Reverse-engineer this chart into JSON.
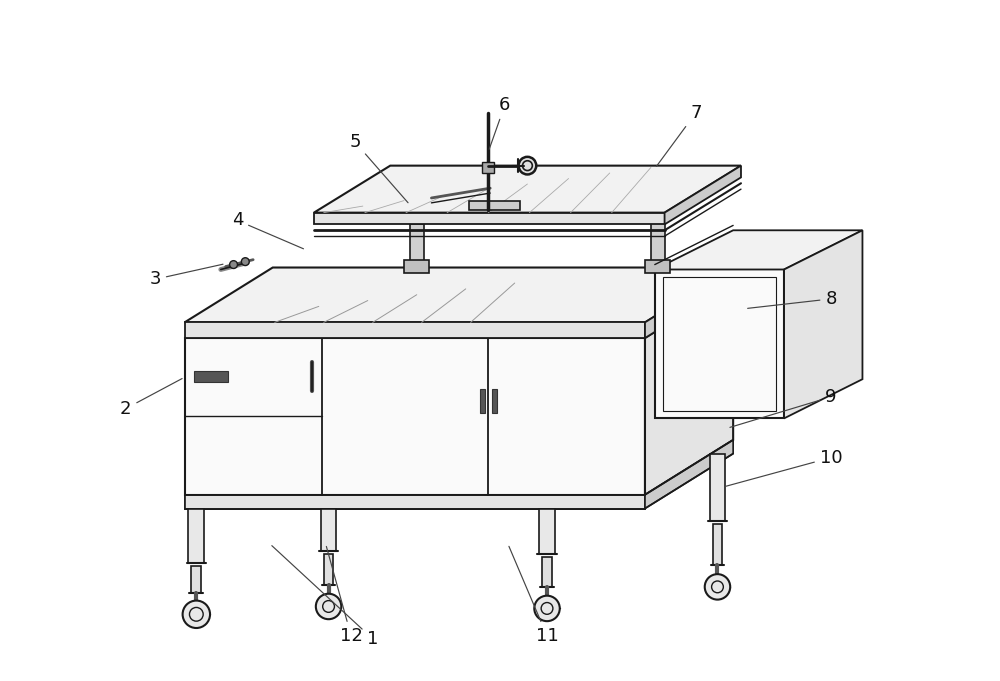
{
  "bg_color": "#ffffff",
  "lc": "#1a1a1a",
  "lc_light": "#888888",
  "fc_top": "#f2f2f2",
  "fc_side": "#e4e4e4",
  "fc_dark": "#cccccc",
  "fc_white": "#fafafa",
  "figsize": [
    10.0,
    6.81
  ],
  "dpi": 100,
  "annotations": [
    [
      1,
      370,
      645,
      265,
      548
    ],
    [
      2,
      118,
      410,
      178,
      378
    ],
    [
      3,
      148,
      278,
      220,
      262
    ],
    [
      4,
      232,
      218,
      302,
      248
    ],
    [
      5,
      352,
      138,
      408,
      202
    ],
    [
      6,
      505,
      100,
      488,
      148
    ],
    [
      7,
      700,
      108,
      658,
      165
    ],
    [
      8,
      838,
      298,
      750,
      308
    ],
    [
      9,
      838,
      398,
      732,
      430
    ],
    [
      10,
      838,
      460,
      728,
      490
    ],
    [
      11,
      548,
      642,
      508,
      548
    ],
    [
      12,
      348,
      642,
      322,
      548
    ]
  ]
}
